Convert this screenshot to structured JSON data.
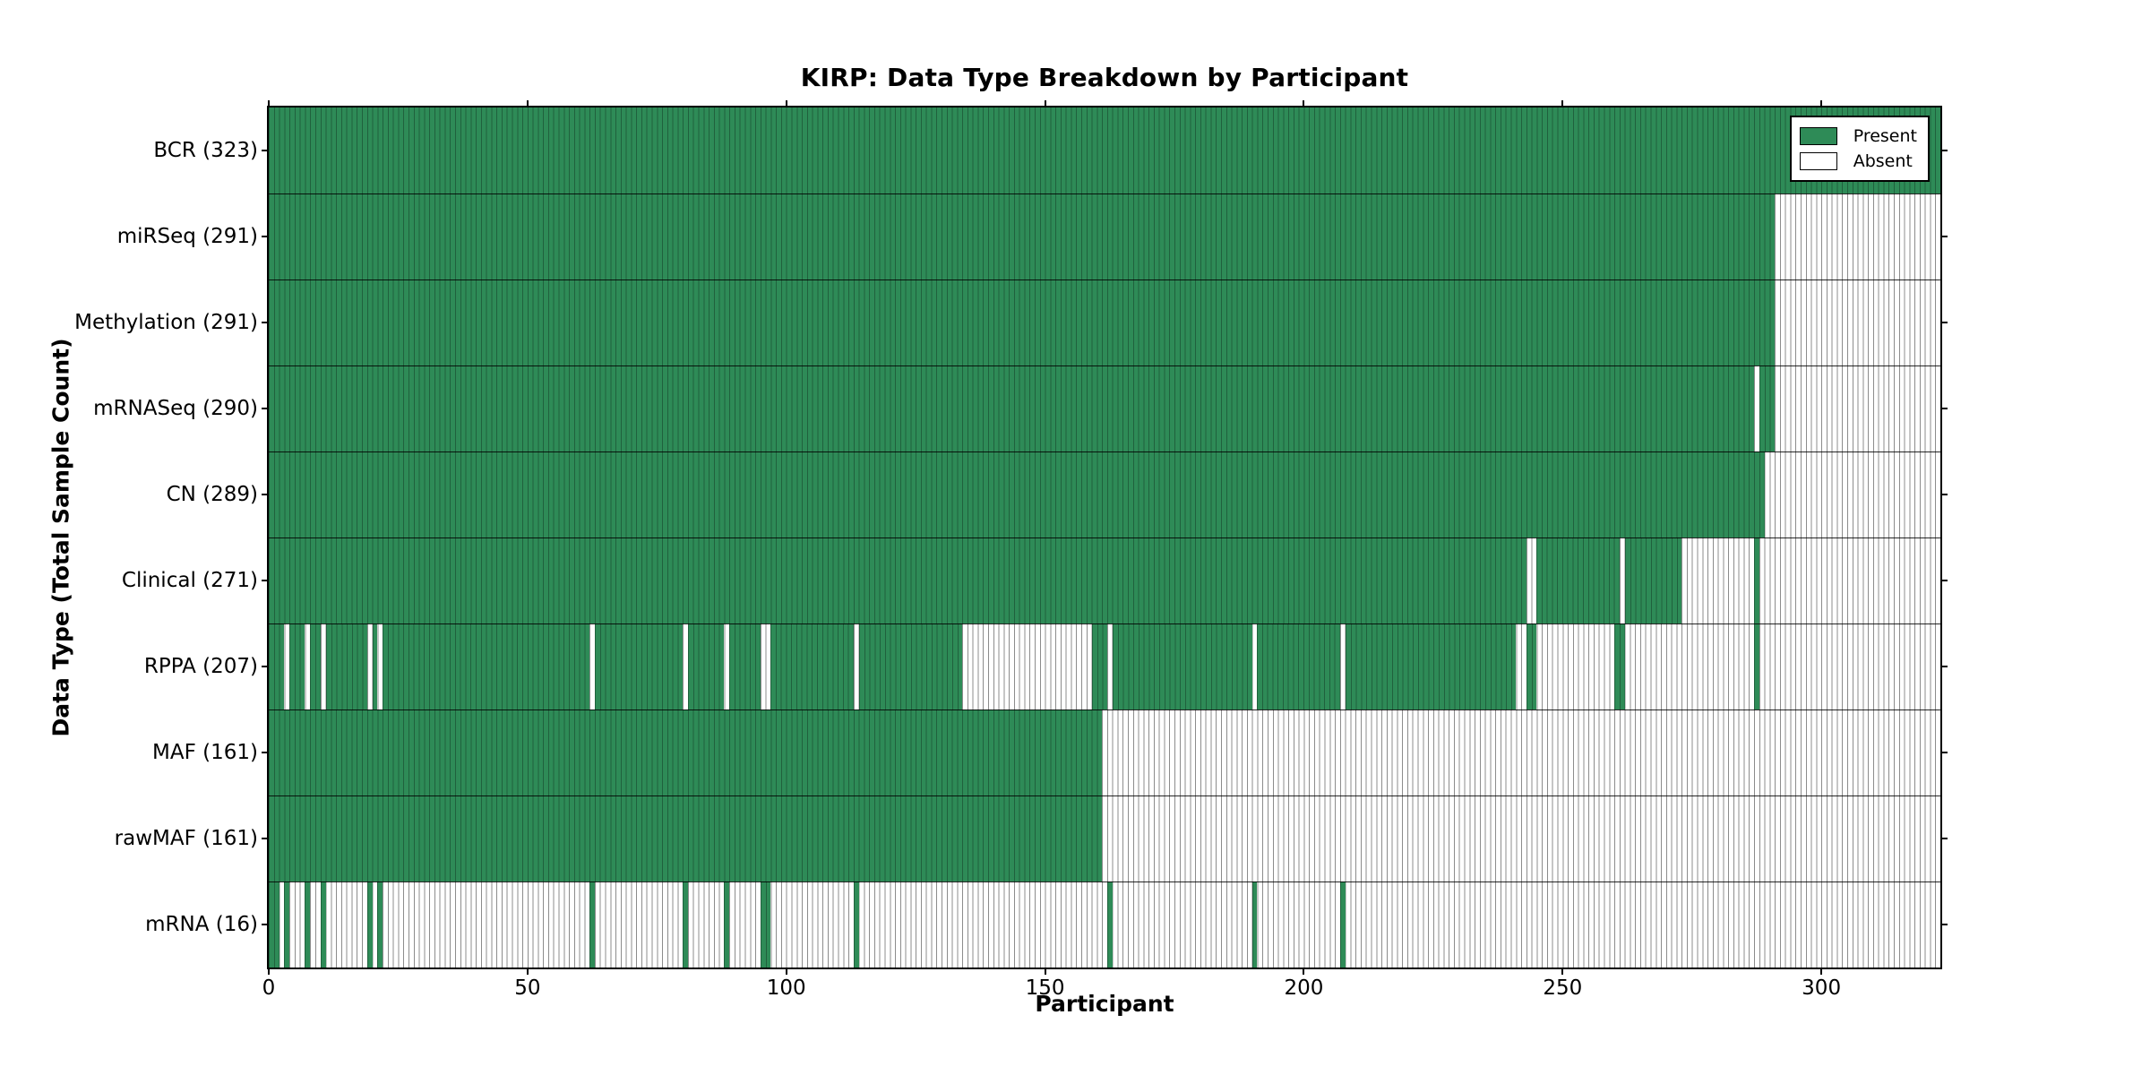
{
  "chart_data": {
    "type": "heatmap",
    "title": "KIRP: Data Type Breakdown by Participant",
    "xlabel": "Participant",
    "ylabel": "Data Type (Total Sample Count)",
    "x_ticks": [
      0,
      50,
      100,
      150,
      200,
      250,
      300
    ],
    "xlim": [
      0,
      323
    ],
    "n_participants": 323,
    "grid": "per-participant vertical cell edges, black row separators",
    "legend": {
      "position": "upper right",
      "present_label": "Present",
      "absent_label": "Absent"
    },
    "colors": {
      "present": "#2e8b57",
      "absent": "#ffffff",
      "cell_edge_on_present": "rgba(0,0,0,0.30)",
      "cell_edge_on_absent": "#8c8c8c",
      "axis": "#000000"
    },
    "rows": [
      {
        "label": "BCR (323)",
        "data_type": "BCR",
        "count": 323,
        "present_ranges": [
          [
            0,
            323
          ]
        ]
      },
      {
        "label": "miRSeq (291)",
        "data_type": "miRSeq",
        "count": 291,
        "present_ranges": [
          [
            0,
            291
          ]
        ]
      },
      {
        "label": "Methylation (291)",
        "data_type": "Methylation",
        "count": 291,
        "present_ranges": [
          [
            0,
            291
          ]
        ]
      },
      {
        "label": "mRNASeq (290)",
        "data_type": "mRNASeq",
        "count": 290,
        "present_ranges": [
          [
            0,
            287
          ],
          [
            288,
            291
          ]
        ]
      },
      {
        "label": "CN (289)",
        "data_type": "CN",
        "count": 289,
        "present_ranges": [
          [
            0,
            289
          ]
        ]
      },
      {
        "label": "Clinical (271)",
        "data_type": "Clinical",
        "count": 271,
        "present_ranges": [
          [
            0,
            243
          ],
          [
            245,
            261
          ],
          [
            262,
            273
          ],
          [
            287,
            288
          ]
        ]
      },
      {
        "label": "RPPA (207)",
        "data_type": "RPPA",
        "count": 207,
        "present_ranges": [
          [
            0,
            3
          ],
          [
            4,
            7
          ],
          [
            8,
            10
          ],
          [
            11,
            19
          ],
          [
            20,
            21
          ],
          [
            22,
            62
          ],
          [
            63,
            80
          ],
          [
            81,
            88
          ],
          [
            89,
            95
          ],
          [
            97,
            113
          ],
          [
            114,
            134
          ],
          [
            159,
            162
          ],
          [
            163,
            190
          ],
          [
            191,
            207
          ],
          [
            208,
            241
          ],
          [
            243,
            245
          ],
          [
            260,
            262
          ],
          [
            287,
            288
          ]
        ]
      },
      {
        "label": "MAF (161)",
        "data_type": "MAF",
        "count": 161,
        "present_ranges": [
          [
            0,
            161
          ]
        ]
      },
      {
        "label": "rawMAF (161)",
        "data_type": "rawMAF",
        "count": 161,
        "present_ranges": [
          [
            0,
            161
          ]
        ]
      },
      {
        "label": "mRNA (16)",
        "data_type": "mRNA",
        "count": 16,
        "present_ranges": [
          [
            0,
            2
          ],
          [
            3,
            4
          ],
          [
            7,
            8
          ],
          [
            10,
            11
          ],
          [
            19,
            20
          ],
          [
            21,
            22
          ],
          [
            62,
            63
          ],
          [
            80,
            81
          ],
          [
            88,
            89
          ],
          [
            95,
            97
          ],
          [
            113,
            114
          ],
          [
            162,
            163
          ],
          [
            190,
            191
          ],
          [
            207,
            208
          ]
        ]
      }
    ]
  }
}
